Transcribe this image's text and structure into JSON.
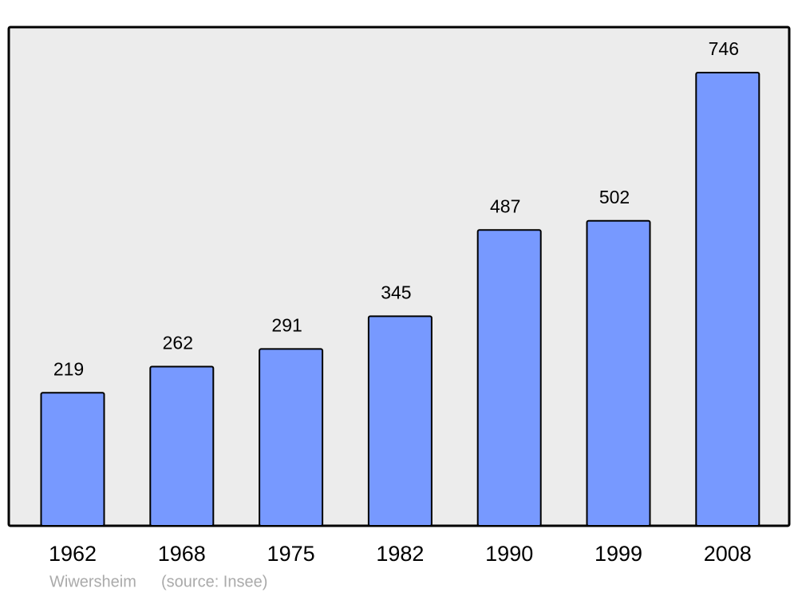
{
  "chart_data": {
    "type": "bar",
    "categories": [
      "1962",
      "1968",
      "1975",
      "1982",
      "1990",
      "1999",
      "2008"
    ],
    "values": [
      219,
      262,
      291,
      345,
      487,
      502,
      746
    ],
    "color": "#7799ff",
    "caption": "Wiwersheim",
    "source": "(source: Insee)"
  }
}
